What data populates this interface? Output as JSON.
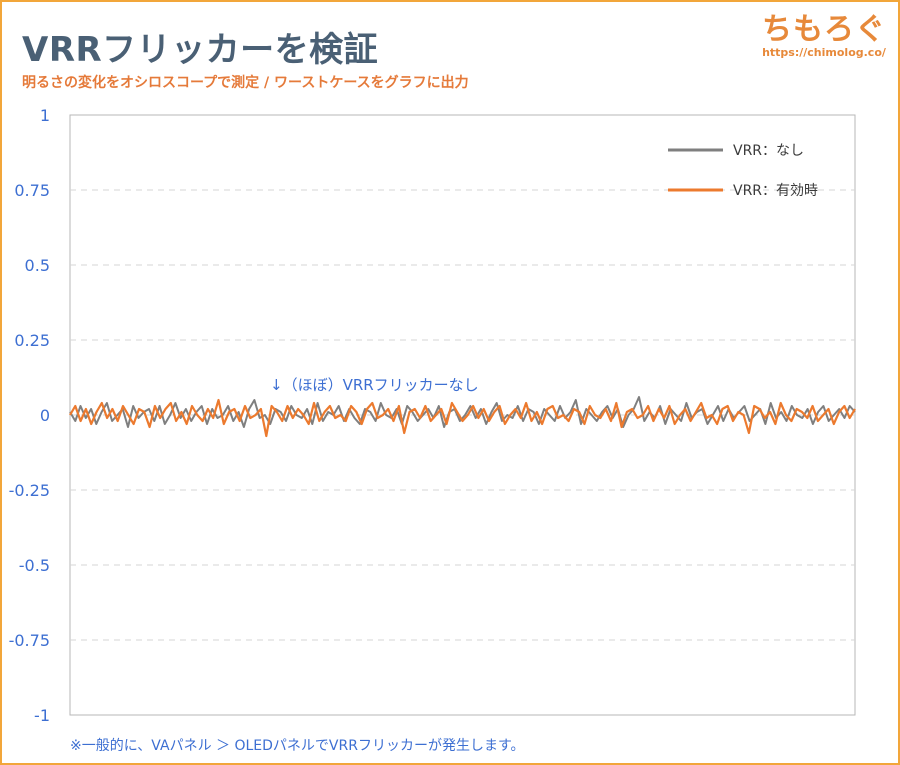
{
  "header": {
    "title": "VRRフリッカーを検証",
    "subtitle": "明るさの変化をオシロスコープで測定 / ワーストケースをグラフに出力",
    "brand_name": "ちもろぐ",
    "brand_url": "https://chimolog.co/"
  },
  "colors": {
    "frame": "#f2a63a",
    "title": "#4a6075",
    "subtitle": "#e57a3a",
    "axis_text": "#3d6fd2",
    "grid": "#d6d6d6",
    "series_none": "#7f7f7f",
    "series_enabled": "#ec7a2e"
  },
  "chart_data": {
    "type": "line",
    "title": "",
    "xlabel": "",
    "ylabel": "",
    "ylim": [
      -1,
      1
    ],
    "yticks": [
      "1",
      "0.75",
      "0.5",
      "0.25",
      "0",
      "-0.25",
      "-0.5",
      "-0.75",
      "-1"
    ],
    "grid": "horizontal dashed",
    "legend_position": "top-right",
    "series": [
      {
        "name": "VRR：なし",
        "color": "#7f7f7f",
        "values": [
          0.01,
          -0.02,
          0.03,
          -0.01,
          0.02,
          -0.03,
          0.01,
          0.04,
          -0.02,
          0.0,
          0.02,
          -0.04,
          0.03,
          -0.01,
          0.01,
          0.02,
          -0.02,
          0.03,
          -0.03,
          0.0,
          0.04,
          -0.01,
          0.02,
          -0.02,
          0.01,
          0.03,
          -0.03,
          0.02,
          -0.01,
          0.0,
          0.03,
          -0.02,
          0.01,
          -0.04,
          0.02,
          0.05,
          -0.01,
          0.0,
          -0.03,
          0.02,
          0.01,
          -0.02,
          0.03,
          0.0,
          -0.01,
          0.02,
          -0.03,
          0.04,
          -0.02,
          0.01,
          0.0,
          0.03,
          -0.02,
          0.02,
          -0.01,
          -0.03,
          0.02,
          0.01,
          -0.02,
          0.04,
          0.0,
          -0.01,
          0.02,
          -0.03,
          0.03,
          0.01,
          -0.02,
          0.0,
          0.02,
          -0.01,
          0.03,
          -0.04,
          0.01,
          0.02,
          -0.02,
          0.0,
          0.03,
          -0.01,
          0.02,
          -0.03,
          0.01,
          0.04,
          -0.02,
          0.0,
          -0.01,
          0.03,
          -0.02,
          0.02,
          0.01,
          -0.03,
          0.02,
          0.0,
          -0.02,
          0.03,
          -0.01,
          0.01,
          0.05,
          -0.03,
          0.02,
          0.0,
          -0.02,
          0.01,
          0.03,
          -0.01,
          0.02,
          -0.04,
          0.0,
          0.02,
          0.06,
          -0.02,
          0.01,
          -0.01,
          0.03,
          -0.03,
          0.02,
          0.0,
          -0.02,
          0.04,
          -0.01,
          0.01,
          0.02,
          -0.03,
          0.0,
          0.03,
          -0.02,
          0.02,
          -0.01,
          0.01,
          0.03,
          -0.02,
          0.0,
          0.02,
          -0.03,
          0.04,
          -0.01,
          0.01,
          -0.02,
          0.03,
          0.0,
          -0.01,
          0.02,
          -0.03,
          0.01,
          0.03,
          -0.02,
          0.0,
          0.02,
          -0.01,
          0.03,
          0.01
        ]
      },
      {
        "name": "VRR：有効時",
        "color": "#ec7a2e",
        "values": [
          0.0,
          0.03,
          -0.02,
          0.02,
          -0.03,
          0.01,
          0.04,
          -0.01,
          0.02,
          -0.02,
          0.03,
          0.0,
          -0.03,
          0.02,
          0.01,
          -0.04,
          0.03,
          -0.01,
          0.02,
          0.04,
          -0.02,
          0.01,
          -0.03,
          0.03,
          0.0,
          -0.02,
          0.02,
          -0.01,
          0.05,
          -0.03,
          0.01,
          0.02,
          -0.02,
          0.03,
          -0.01,
          0.0,
          0.02,
          -0.07,
          0.03,
          0.01,
          -0.02,
          0.03,
          -0.01,
          0.02,
          0.0,
          -0.03,
          0.04,
          -0.02,
          0.01,
          0.03,
          -0.01,
          0.0,
          -0.02,
          0.03,
          0.01,
          -0.03,
          0.02,
          0.04,
          -0.01,
          0.0,
          0.02,
          -0.02,
          0.03,
          -0.06,
          0.01,
          0.02,
          -0.01,
          0.03,
          -0.02,
          0.0,
          0.02,
          -0.03,
          0.04,
          0.01,
          -0.02,
          0.0,
          0.03,
          -0.01,
          0.02,
          -0.02,
          0.01,
          0.03,
          -0.03,
          0.0,
          0.02,
          -0.01,
          0.04,
          -0.02,
          0.01,
          -0.03,
          0.02,
          0.03,
          -0.01,
          0.0,
          -0.02,
          0.02,
          0.01,
          -0.03,
          0.03,
          0.0,
          -0.01,
          0.02,
          -0.02,
          0.04,
          -0.04,
          0.01,
          0.02,
          -0.01,
          0.0,
          0.03,
          -0.02,
          0.02,
          -0.01,
          0.03,
          -0.03,
          0.0,
          0.02,
          -0.02,
          0.01,
          0.04,
          -0.01,
          0.0,
          -0.03,
          0.02,
          0.03,
          -0.02,
          0.01,
          0.0,
          -0.06,
          0.03,
          0.02,
          -0.01,
          0.01,
          -0.03,
          0.04,
          0.0,
          -0.02,
          0.02,
          0.01,
          -0.01,
          0.03,
          -0.02,
          0.0,
          0.02,
          -0.03,
          0.01,
          0.03,
          -0.01,
          0.02
        ]
      }
    ],
    "annotation": "↓（ほぼ）VRRフリッカーなし"
  },
  "footnote": "※一般的に、VAパネル ＞ OLEDパネルでVRRフリッカーが発生します。"
}
